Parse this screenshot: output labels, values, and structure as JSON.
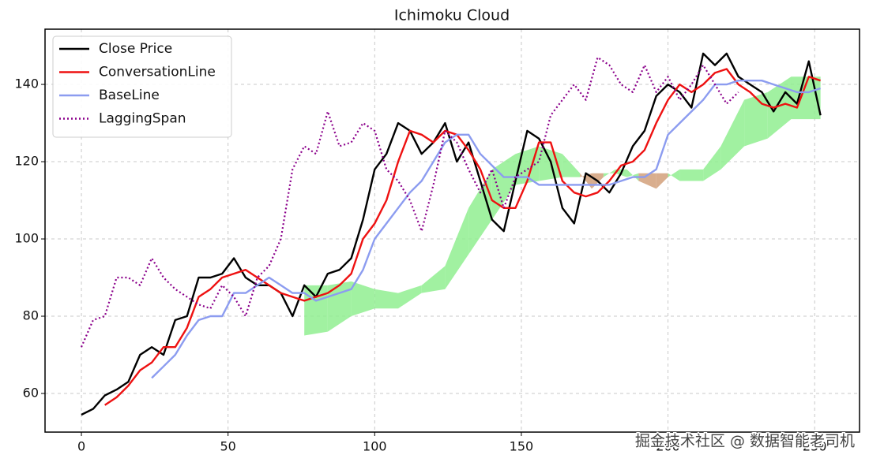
{
  "chart_data": {
    "type": "line",
    "title": "Ichimoku Cloud",
    "xlim": [
      -12.4,
      265.3
    ],
    "ylim": [
      50,
      154.3
    ],
    "xticks": [
      0,
      50,
      100,
      150,
      200,
      250
    ],
    "yticks": [
      60,
      80,
      100,
      120,
      140
    ],
    "grid": true,
    "legend": "upper left",
    "series": [
      {
        "name": "Close Price",
        "color": "#000000",
        "dash": "solid",
        "x": [
          0,
          4,
          8,
          12,
          16,
          20,
          24,
          28,
          32,
          36,
          40,
          44,
          48,
          52,
          56,
          60,
          64,
          68,
          72,
          76,
          80,
          84,
          88,
          92,
          96,
          100,
          104,
          108,
          112,
          116,
          120,
          124,
          128,
          132,
          136,
          140,
          144,
          148,
          152,
          156,
          160,
          164,
          168,
          172,
          176,
          180,
          184,
          188,
          192,
          196,
          200,
          204,
          208,
          212,
          216,
          220,
          224,
          228,
          232,
          236,
          240,
          244,
          248,
          252
        ],
        "values": [
          54.5,
          56,
          59.5,
          61,
          63,
          70,
          72,
          70,
          79,
          80,
          90,
          90,
          91,
          95,
          90,
          88,
          88,
          86,
          80,
          88,
          85,
          91,
          92,
          95,
          105,
          118,
          122,
          130,
          128,
          122,
          125,
          130,
          120,
          125,
          115,
          105,
          102,
          115,
          128,
          126,
          120,
          108,
          104,
          117,
          115,
          112,
          117,
          124,
          128,
          137,
          140,
          138,
          134,
          148,
          145,
          148,
          142,
          140,
          138,
          133,
          138,
          135,
          146,
          132
        ]
      },
      {
        "name": "ConversationLine",
        "color": "#ee1111",
        "dash": "solid",
        "x": [
          8,
          12,
          16,
          20,
          24,
          28,
          32,
          36,
          40,
          44,
          48,
          52,
          56,
          60,
          64,
          68,
          72,
          76,
          80,
          84,
          88,
          92,
          96,
          100,
          104,
          108,
          112,
          116,
          120,
          124,
          128,
          132,
          136,
          140,
          144,
          148,
          152,
          156,
          160,
          164,
          168,
          172,
          176,
          180,
          184,
          188,
          192,
          196,
          200,
          204,
          208,
          212,
          216,
          220,
          224,
          228,
          232,
          236,
          240,
          244,
          248,
          252
        ],
        "values": [
          57,
          59,
          62,
          66,
          68,
          72,
          72,
          77,
          85,
          87,
          90,
          91,
          92,
          90,
          88,
          86,
          85,
          84,
          85,
          86,
          88,
          91,
          100,
          104,
          110,
          120,
          128,
          127,
          125,
          128,
          127,
          123,
          118,
          110,
          108,
          108,
          115,
          125,
          125,
          115,
          112,
          111,
          112,
          115,
          119,
          120,
          123,
          130,
          136,
          140,
          138,
          140,
          143,
          144,
          140,
          138,
          135,
          134,
          135,
          134,
          142,
          141
        ]
      },
      {
        "name": "BaseLine",
        "color": "#8c9cf0",
        "dash": "solid",
        "x": [
          24,
          28,
          32,
          36,
          40,
          44,
          48,
          52,
          56,
          60,
          64,
          68,
          72,
          76,
          80,
          84,
          88,
          92,
          96,
          100,
          104,
          108,
          112,
          116,
          120,
          124,
          128,
          132,
          136,
          140,
          144,
          148,
          152,
          156,
          160,
          164,
          168,
          172,
          176,
          180,
          184,
          188,
          192,
          196,
          200,
          204,
          208,
          212,
          216,
          220,
          224,
          228,
          232,
          236,
          240,
          244,
          248,
          252
        ],
        "values": [
          64,
          67,
          70,
          75,
          79,
          80,
          80,
          86,
          86,
          88,
          90,
          88,
          86,
          86,
          84,
          85,
          86,
          87,
          92,
          100,
          104,
          108,
          112,
          115,
          120,
          125,
          127,
          127,
          122,
          119,
          116,
          116,
          116,
          114,
          114,
          114,
          114,
          114,
          114,
          114,
          115,
          116,
          116,
          118,
          127,
          130,
          133,
          136,
          140,
          140,
          141,
          141,
          141,
          140,
          139,
          138,
          138,
          139
        ]
      },
      {
        "name": "LaggingSpan",
        "color": "#8b008b",
        "dash": "dotted",
        "x": [
          0,
          4,
          8,
          12,
          16,
          20,
          24,
          28,
          32,
          36,
          40,
          44,
          48,
          52,
          56,
          60,
          64,
          68,
          72,
          76,
          80,
          84,
          88,
          92,
          96,
          100,
          104,
          108,
          112,
          116,
          120,
          124,
          128,
          132,
          136,
          140,
          144,
          148,
          152,
          156,
          160,
          164,
          168,
          172,
          176,
          180,
          184,
          188,
          192,
          196,
          200,
          204,
          208,
          212,
          216,
          220,
          224
        ],
        "values": [
          72,
          79,
          80,
          90,
          90,
          88,
          95,
          90,
          87,
          85,
          83,
          82,
          88,
          85,
          80,
          90,
          93,
          100,
          118,
          124,
          122,
          133,
          124,
          125,
          130,
          128,
          118,
          115,
          110,
          102,
          114,
          128,
          125,
          118,
          112,
          118,
          108,
          116,
          118,
          120,
          132,
          136,
          140,
          136,
          147,
          145,
          140,
          138,
          145,
          138,
          142,
          136,
          140,
          145,
          140,
          135,
          138
        ]
      }
    ],
    "cloud": {
      "up_color": "#90ee90",
      "down_color": "#d2a07a",
      "x": [
        76,
        84,
        92,
        100,
        108,
        116,
        124,
        132,
        140,
        148,
        156,
        164,
        170,
        174,
        178,
        182,
        186,
        190,
        196,
        200,
        204,
        212,
        218,
        226,
        234,
        242,
        252
      ],
      "a": [
        88,
        88,
        89,
        87,
        86,
        88,
        93,
        108,
        118,
        122,
        124,
        122,
        117,
        113,
        116,
        118,
        118,
        115,
        113,
        116,
        118,
        118,
        124,
        136,
        138,
        142,
        142
      ],
      "b": [
        75,
        76,
        80,
        82,
        82,
        86,
        87,
        96,
        105,
        114,
        115,
        116,
        116,
        117,
        117,
        117,
        116,
        117,
        117,
        117,
        115,
        115,
        118,
        124,
        126,
        131,
        131
      ]
    },
    "watermark": "掘金技术社区 @ 数据智能老司机"
  }
}
